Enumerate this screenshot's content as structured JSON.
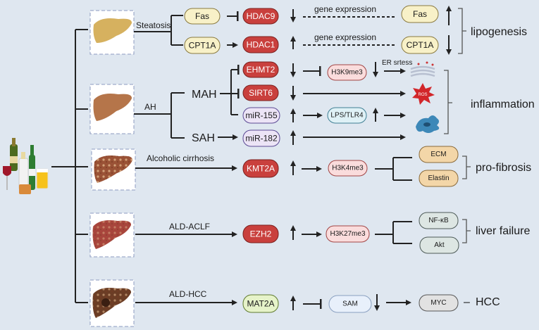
{
  "stages": {
    "steatosis": "Steatosis",
    "ah": "AH",
    "mah": "MAH",
    "sah": "SAH",
    "cirrhosis": "Alcoholic cirrhosis",
    "aclf": "ALD-ACLF",
    "hcc": "ALD-HCC"
  },
  "nodes": {
    "fas": "Fas",
    "cpt1a": "CPT1A",
    "hdac9": "HDAC9",
    "hdac1": "HDAC1",
    "gene_expression_1": "gene expression",
    "gene_expression_2": "gene expression",
    "fas_out": "Fas",
    "cpt1a_out": "CPT1A",
    "ehmt2": "EHMT2",
    "sirt6": "SIRT6",
    "mir155": "miR-155",
    "mir182": "miR-182",
    "h3k9me3": "H3K9me3",
    "er_stress": "ER srtess",
    "ros": "ROS",
    "lps_tlr4": "LPS/TLR4",
    "kmt2a": "KMT2A",
    "h3k4me3": "H3K4me3",
    "ecm": "ECM",
    "elastin": "Elastin",
    "ezh2": "EZH2",
    "h3k27me3": "H3K27me3",
    "nfkb": "NF-κB",
    "akt": "Akt",
    "mat2a": "MAT2A",
    "sam": "SAM",
    "myc": "MYC"
  },
  "outcomes": {
    "lipogenesis": "lipogenesis",
    "inflammation": "inflammation",
    "pro_fibrosis": "pro-fibrosis",
    "liver_failure": "liver failure",
    "hcc": "HCC",
    "hcc_dash": "–"
  },
  "colors": {
    "background": "#dfe7f0",
    "enzyme_red": "#c9403d",
    "gene_yellow": "#f8f1c8",
    "mirna_lavender": "#ece4f6",
    "histone_pink": "#fadcdc",
    "lps_blue": "#dff1f6",
    "ecm_orange": "#f3d6a8",
    "nfkb_grey": "#dde6e3",
    "mat2a_green": "#e6f3c9",
    "sam_blue": "#e8f0fb",
    "myc_grey": "#e2e2e2"
  },
  "icons": [
    "alcohol-drinks-icon",
    "liver-steatosis-icon",
    "liver-ah-icon",
    "liver-cirrhosis-icon",
    "liver-aclf-icon",
    "liver-hcc-icon",
    "er-membrane-icon",
    "ros-star-icon",
    "macrophage-cell-icon"
  ]
}
